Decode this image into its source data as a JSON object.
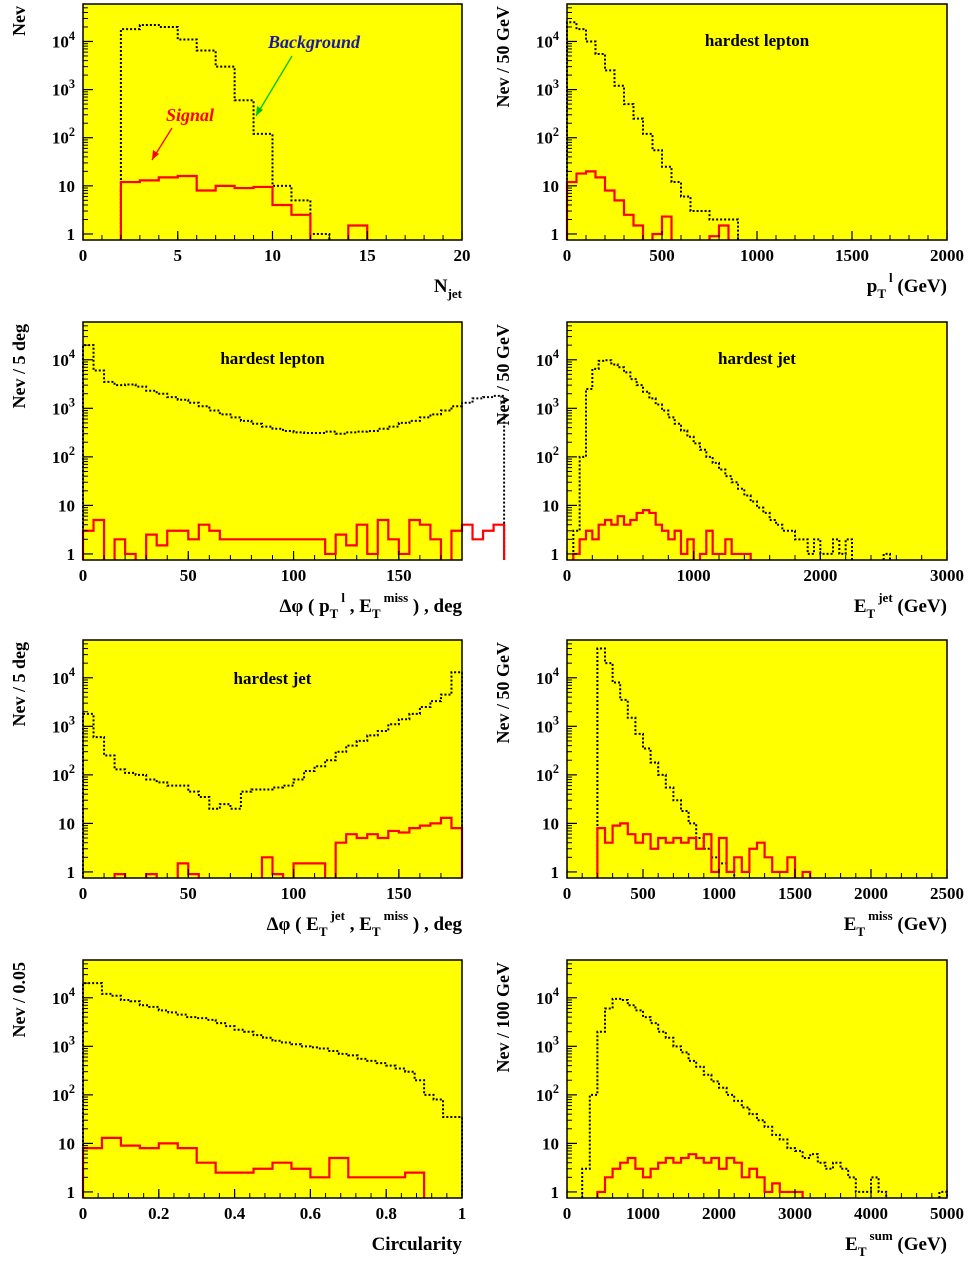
{
  "colors": {
    "background": "#ffff00",
    "signal": "#ff0000",
    "background_hist": "#000000",
    "background_label": "#1a1aa0",
    "signal_label": "#ff0000",
    "background_arrow": "#00c000",
    "signal_arrow": "#ff0000"
  },
  "chart_data": [
    {
      "id": "njet",
      "type": "histogram",
      "log_y": true,
      "grid": false,
      "xlim": [
        0,
        20
      ],
      "ylim": [
        0.75,
        60000
      ],
      "xticks": [
        0,
        5,
        10,
        15,
        20
      ],
      "xtick_labels": [
        "0",
        "5",
        "10",
        "15",
        "20"
      ],
      "ylabel": "Nev",
      "xlabel_main": "N",
      "xlabel_sub": "jet",
      "xlabel_sup": "",
      "xlabel_tail": "",
      "annotation": "",
      "series": [
        {
          "name": "Background",
          "style": "dotted",
          "start": 2,
          "width": 1,
          "values": [
            18000,
            22000,
            20000,
            11000,
            6500,
            3000,
            600,
            120,
            10,
            5,
            1
          ]
        },
        {
          "name": "Signal",
          "style": "solid",
          "start": 2,
          "width": 1,
          "values": [
            12,
            13,
            15,
            16,
            8,
            10,
            9,
            9.5,
            4,
            2.5,
            0,
            0,
            1.5
          ]
        }
      ],
      "legend_labels": {
        "background": "Background",
        "signal": "Signal"
      }
    },
    {
      "id": "ptl",
      "type": "histogram",
      "log_y": true,
      "grid": false,
      "xlim": [
        0,
        2000
      ],
      "ylim": [
        0.75,
        60000
      ],
      "xticks": [
        0,
        500,
        1000,
        1500,
        2000
      ],
      "xtick_labels": [
        "0",
        "500",
        "1000",
        "1500",
        "2000"
      ],
      "ylabel": "Nev / 50 GeV",
      "xlabel_main": "p",
      "xlabel_sub": "T",
      "xlabel_sup": "l",
      "xlabel_tail": "(GeV)",
      "annotation": "hardest  lepton",
      "series": [
        {
          "style": "dotted",
          "start": 0,
          "width": 50,
          "values": [
            25000,
            18000,
            10000,
            5500,
            2500,
            1200,
            500,
            250,
            120,
            55,
            25,
            12,
            6,
            3,
            3,
            2,
            2,
            2
          ]
        },
        {
          "style": "solid",
          "start": 0,
          "width": 50,
          "values": [
            12,
            18,
            20,
            15,
            8,
            5,
            2.5,
            1.5,
            0,
            1,
            2.3,
            0,
            0,
            0,
            0,
            0.9,
            1.5
          ]
        }
      ]
    },
    {
      "id": "dphi_l",
      "type": "histogram",
      "log_y": true,
      "grid": false,
      "xlim": [
        0,
        180
      ],
      "ylim": [
        0.75,
        60000
      ],
      "xticks": [
        0,
        50,
        100,
        150
      ],
      "xtick_labels": [
        "0",
        "50",
        "100",
        "150"
      ],
      "ylabel": "Nev / 5 deg",
      "xlabel_main": "Δφ ( p",
      "xlabel_sub": "T",
      "xlabel_sup": "l",
      "xlabel_tail": ",  E",
      "xlabel_sub2": "T",
      "xlabel_sup2": "miss",
      "xlabel_tail2": ") , deg",
      "annotation": "hardest  lepton",
      "series": [
        {
          "style": "dotted",
          "start": 0,
          "width": 5,
          "values": [
            20000,
            6000,
            3500,
            3000,
            3100,
            2800,
            2300,
            2000,
            1700,
            1500,
            1300,
            1100,
            900,
            750,
            650,
            550,
            480,
            420,
            380,
            340,
            320,
            310,
            310,
            330,
            300,
            320,
            330,
            340,
            380,
            420,
            500,
            550,
            650,
            750,
            900,
            1100,
            1300,
            1600,
            1700,
            1800
          ]
        },
        {
          "style": "solid",
          "start": 0,
          "width": 5,
          "values": [
            3,
            5,
            0,
            2,
            1,
            0,
            2.5,
            1.5,
            3,
            3,
            2,
            4,
            3,
            2,
            2,
            2,
            2,
            2,
            2,
            2,
            2,
            2,
            2,
            1,
            2.5,
            1.5,
            4,
            1,
            5,
            2,
            1,
            5,
            4,
            2,
            0,
            3,
            4,
            2,
            3,
            4
          ]
        }
      ]
    },
    {
      "id": "etjet",
      "type": "histogram",
      "log_y": true,
      "grid": false,
      "xlim": [
        0,
        3000
      ],
      "ylim": [
        0.75,
        60000
      ],
      "xticks": [
        0,
        1000,
        2000,
        3000
      ],
      "xtick_labels": [
        "0",
        "1000",
        "2000",
        "3000"
      ],
      "ylabel": "Nev / 50 GeV",
      "xlabel_main": "E",
      "xlabel_sub": "T",
      "xlabel_sup": "jet",
      "xlabel_tail": "(GeV)",
      "annotation": "hardest  jet",
      "series": [
        {
          "style": "dotted",
          "start": 50,
          "width": 50,
          "values": [
            3,
            100,
            2500,
            6500,
            9500,
            9800,
            8000,
            7000,
            5500,
            4000,
            3000,
            2200,
            1600,
            1200,
            900,
            650,
            480,
            350,
            260,
            190,
            140,
            100,
            75,
            55,
            40,
            30,
            22,
            16,
            12,
            9,
            7,
            5,
            4,
            3,
            3,
            2,
            2,
            1,
            2,
            1,
            1,
            2,
            1,
            2,
            0,
            0,
            0,
            0,
            0,
            1
          ]
        },
        {
          "style": "solid",
          "start": 50,
          "width": 50,
          "values": [
            1,
            2,
            3,
            2,
            4,
            5,
            4,
            6,
            4,
            5,
            7,
            8,
            7,
            4,
            3,
            2,
            3,
            1,
            2,
            0,
            1,
            3,
            1,
            1,
            2,
            1,
            1,
            1,
            0,
            0
          ]
        }
      ]
    },
    {
      "id": "dphi_j",
      "type": "histogram",
      "log_y": true,
      "grid": false,
      "xlim": [
        0,
        180
      ],
      "ylim": [
        0.75,
        60000
      ],
      "xticks": [
        0,
        50,
        100,
        150
      ],
      "xtick_labels": [
        "0",
        "50",
        "100",
        "150"
      ],
      "ylabel": "Nev / 5 deg",
      "xlabel_main": "Δφ ( E",
      "xlabel_sub": "T",
      "xlabel_sup": "jet",
      "xlabel_tail": ",  E",
      "xlabel_sub2": "T",
      "xlabel_sup2": "miss",
      "xlabel_tail2": ") , deg",
      "annotation": "hardest  jet",
      "series": [
        {
          "style": "dotted",
          "start": 0,
          "width": 5,
          "values": [
            1800,
            600,
            250,
            130,
            110,
            100,
            80,
            70,
            60,
            60,
            45,
            35,
            20,
            25,
            20,
            45,
            50,
            50,
            55,
            60,
            80,
            120,
            150,
            200,
            300,
            400,
            500,
            650,
            800,
            1100,
            1400,
            1800,
            2500,
            3300,
            4500,
            13000
          ]
        },
        {
          "style": "solid",
          "start": 0,
          "width": 5,
          "values": [
            0,
            0,
            0,
            0.9,
            0,
            0,
            0.9,
            0,
            0,
            1.5,
            0.9,
            0,
            0,
            0,
            0,
            0,
            0,
            2,
            0.9,
            0,
            1.5,
            1.5,
            1.5,
            0,
            4,
            6,
            5,
            6,
            5,
            7,
            6.5,
            8,
            9,
            10,
            13,
            8
          ]
        }
      ]
    },
    {
      "id": "etmiss",
      "type": "histogram",
      "log_y": true,
      "grid": false,
      "xlim": [
        0,
        2500
      ],
      "ylim": [
        0.75,
        60000
      ],
      "xticks": [
        0,
        500,
        1000,
        1500,
        2000,
        2500
      ],
      "xtick_labels": [
        "0",
        "500",
        "1000",
        "1500",
        "2000",
        "2500"
      ],
      "ylabel": "Nev / 50 GeV",
      "xlabel_main": "E",
      "xlabel_sub": "T",
      "xlabel_sup": "miss",
      "xlabel_tail": "(GeV)",
      "annotation": "",
      "series": [
        {
          "style": "dotted",
          "start": 200,
          "width": 50,
          "values": [
            40000,
            20000,
            8000,
            3500,
            1500,
            700,
            350,
            180,
            100,
            55,
            30,
            18,
            10,
            5,
            3,
            2,
            1.5,
            1
          ]
        },
        {
          "style": "solid",
          "start": 200,
          "width": 50,
          "values": [
            8,
            4,
            9,
            10,
            6,
            4,
            6,
            3,
            5,
            4,
            5,
            4,
            5,
            3,
            6,
            1,
            5,
            1,
            2,
            1,
            3,
            4,
            2,
            1,
            1,
            2,
            0,
            1
          ]
        }
      ]
    },
    {
      "id": "circ",
      "type": "histogram",
      "log_y": true,
      "grid": false,
      "xlim": [
        0,
        1
      ],
      "ylim": [
        0.75,
        60000
      ],
      "xticks": [
        0,
        0.2,
        0.4,
        0.6,
        0.8,
        1
      ],
      "xtick_labels": [
        "0",
        "0.2",
        "0.4",
        "0.6",
        "0.8",
        "1"
      ],
      "ylabel": "Nev / 0.05",
      "xlabel_main": "Circularity",
      "xlabel_sub": "",
      "xlabel_sup": "",
      "xlabel_tail": "",
      "annotation": "",
      "series": [
        {
          "style": "dotted",
          "start": 0,
          "width": 0.025,
          "values": [
            20000,
            20000,
            12000,
            11000,
            9000,
            8500,
            7000,
            6500,
            5500,
            5000,
            4500,
            4000,
            3800,
            3500,
            3000,
            2600,
            2200,
            2000,
            1700,
            1500,
            1300,
            1200,
            1100,
            1000,
            950,
            900,
            800,
            700,
            650,
            550,
            500,
            450,
            400,
            350,
            300,
            200,
            100,
            80,
            35,
            35
          ]
        },
        {
          "style": "solid",
          "start": 0,
          "width": 0.05,
          "values": [
            8,
            13,
            9,
            8,
            10,
            8,
            4,
            2.5,
            2.5,
            3,
            4,
            3,
            2,
            5,
            2,
            2,
            2,
            2.5
          ]
        }
      ]
    },
    {
      "id": "etsum",
      "type": "histogram",
      "log_y": true,
      "grid": false,
      "xlim": [
        0,
        5000
      ],
      "ylim": [
        0.75,
        60000
      ],
      "xticks": [
        0,
        1000,
        2000,
        3000,
        4000,
        5000
      ],
      "xtick_labels": [
        "0",
        "1000",
        "2000",
        "3000",
        "4000",
        "5000"
      ],
      "ylabel": "Nev / 100 GeV",
      "xlabel_main": "E",
      "xlabel_sub": "T",
      "xlabel_sup": "sum",
      "xlabel_tail": "(GeV)",
      "annotation": "",
      "series": [
        {
          "style": "dotted",
          "start": 200,
          "width": 100,
          "values": [
            3,
            100,
            2000,
            6000,
            9500,
            9000,
            7000,
            5500,
            4000,
            3000,
            2000,
            1500,
            1000,
            750,
            500,
            380,
            260,
            190,
            140,
            100,
            75,
            55,
            40,
            30,
            22,
            15,
            12,
            8,
            7,
            5,
            6,
            4,
            3,
            4,
            3,
            2,
            1,
            1,
            2,
            1,
            0,
            0,
            0,
            0,
            0,
            0,
            0,
            1
          ]
        },
        {
          "style": "solid",
          "start": 300,
          "width": 100,
          "values": [
            0,
            1,
            2,
            3,
            4,
            5,
            3,
            2,
            3,
            4,
            5,
            4,
            5,
            6,
            5,
            4,
            5,
            3,
            5,
            4,
            2,
            3,
            2,
            1,
            1.5,
            1,
            1,
            1
          ]
        }
      ]
    }
  ]
}
